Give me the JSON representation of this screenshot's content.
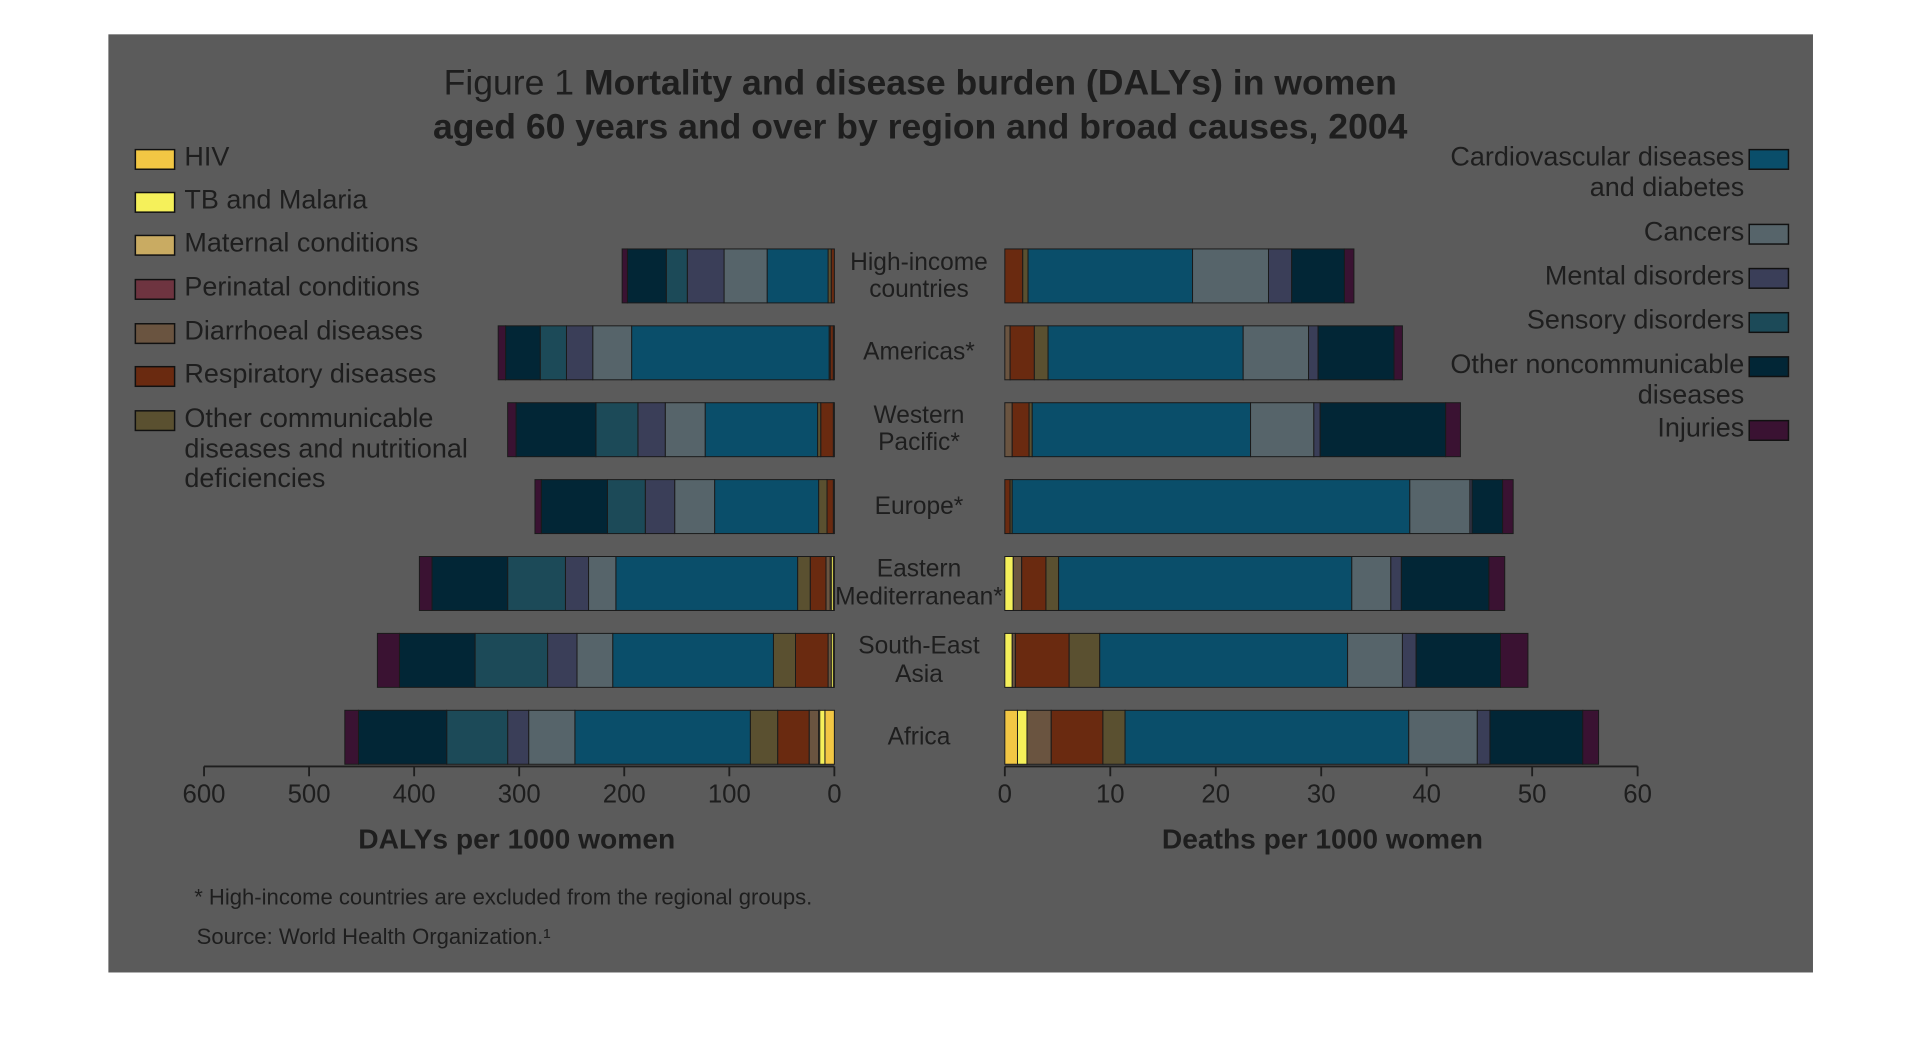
{
  "title_prefix": "Figure 1",
  "notes": [
    "* High-income countries are excluded from the regional groups.",
    "Source: World Health Organization.¹"
  ],
  "chart_data": [
    {
      "type": "bar",
      "title": "Mortality and disease burden (DALYs) in women aged 60 years and over by region and broad causes, 2004",
      "x_label": "DALYs per 1000 women",
      "categories": [
        "High-income countries",
        "Americas*",
        "Western Pacific*",
        "Europe*",
        "Eastern Mediterranean*",
        "South-East Asia",
        "Africa"
      ],
      "xlim": [
        600,
        0
      ],
      "xticks": [
        600,
        500,
        400,
        300,
        200,
        100,
        0
      ],
      "series": [
        {
          "name": "HIV",
          "color": "#f2c744",
          "values": [
            0,
            0,
            0,
            0,
            1,
            1,
            9
          ]
        },
        {
          "name": "TB and Malaria",
          "color": "#f5f05a",
          "values": [
            0,
            0,
            0,
            0,
            2,
            2,
            5
          ]
        },
        {
          "name": "Maternal conditions",
          "color": "#c9ab62",
          "values": [
            0,
            0,
            0,
            0,
            1,
            0,
            1
          ]
        },
        {
          "name": "Perinatal conditions",
          "color": "#6e3440",
          "values": [
            0,
            0,
            0,
            0,
            0,
            0,
            0
          ]
        },
        {
          "name": "Diarrhoeal diseases",
          "color": "#6a5440",
          "values": [
            0,
            1,
            1,
            1,
            4,
            3,
            9
          ]
        },
        {
          "name": "Respiratory diseases",
          "color": "#6a2a10",
          "values": [
            3,
            3,
            12,
            6,
            15,
            31,
            30
          ]
        },
        {
          "name": "Other communicable diseases and nutritional deficiencies",
          "color": "#5a5030",
          "values": [
            3,
            1,
            3,
            8,
            12,
            21,
            26
          ]
        },
        {
          "name": "Cardiovascular diseases and diabetes",
          "color": "#0a4e6a",
          "values": [
            58,
            188,
            107,
            99,
            173,
            153,
            167
          ]
        },
        {
          "name": "Cancers",
          "color": "#56646a",
          "values": [
            41,
            37,
            38,
            38,
            26,
            34,
            44
          ]
        },
        {
          "name": "Mental disorders",
          "color": "#3a3e58",
          "values": [
            35,
            25,
            26,
            28,
            22,
            28,
            20
          ]
        },
        {
          "name": "Sensory disorders",
          "color": "#1c4a58",
          "values": [
            20,
            25,
            40,
            36,
            55,
            69,
            58
          ]
        },
        {
          "name": "Other noncommunicable diseases",
          "color": "#022636",
          "values": [
            37,
            33,
            76,
            63,
            72,
            72,
            84
          ]
        },
        {
          "name": "Injuries",
          "color": "#3a1232",
          "values": [
            5,
            7,
            8,
            6,
            12,
            21,
            13
          ]
        }
      ]
    },
    {
      "type": "bar",
      "x_label": "Deaths per 1000 women",
      "xlim": [
        0,
        60
      ],
      "xticks": [
        0,
        10,
        20,
        30,
        40,
        50,
        60
      ],
      "series": [
        {
          "values": [
            0,
            0,
            0,
            0,
            0,
            0,
            1.2
          ]
        },
        {
          "values": [
            0,
            0,
            0,
            0,
            0.8,
            0.7,
            0.9
          ]
        },
        {
          "values": [
            0,
            0,
            0,
            0,
            0,
            0,
            0
          ]
        },
        {
          "values": [
            0,
            0,
            0,
            0,
            0,
            0,
            0
          ]
        },
        {
          "values": [
            0,
            0.5,
            0.7,
            0,
            0.8,
            0.3,
            2.3
          ]
        },
        {
          "values": [
            1.7,
            2.3,
            1.6,
            0.5,
            2.3,
            5.1,
            4.9
          ]
        },
        {
          "values": [
            0.5,
            1.3,
            0.3,
            0.2,
            1.2,
            2.9,
            2.1
          ]
        },
        {
          "values": [
            15.6,
            18.5,
            20.7,
            37.7,
            27.8,
            23.5,
            26.9
          ]
        },
        {
          "values": [
            7.2,
            6.2,
            6.0,
            5.7,
            3.7,
            5.2,
            6.5
          ]
        },
        {
          "values": [
            2.2,
            0.9,
            0.6,
            0.2,
            1.0,
            1.3,
            1.2
          ]
        },
        {
          "values": [
            0,
            0,
            0,
            0,
            0,
            0,
            0
          ]
        },
        {
          "values": [
            5,
            7.2,
            11.9,
            2.9,
            8.3,
            8.0,
            8.8
          ]
        },
        {
          "values": [
            0.9,
            0.8,
            1.4,
            1.0,
            1.5,
            2.6,
            1.5
          ]
        }
      ]
    }
  ]
}
